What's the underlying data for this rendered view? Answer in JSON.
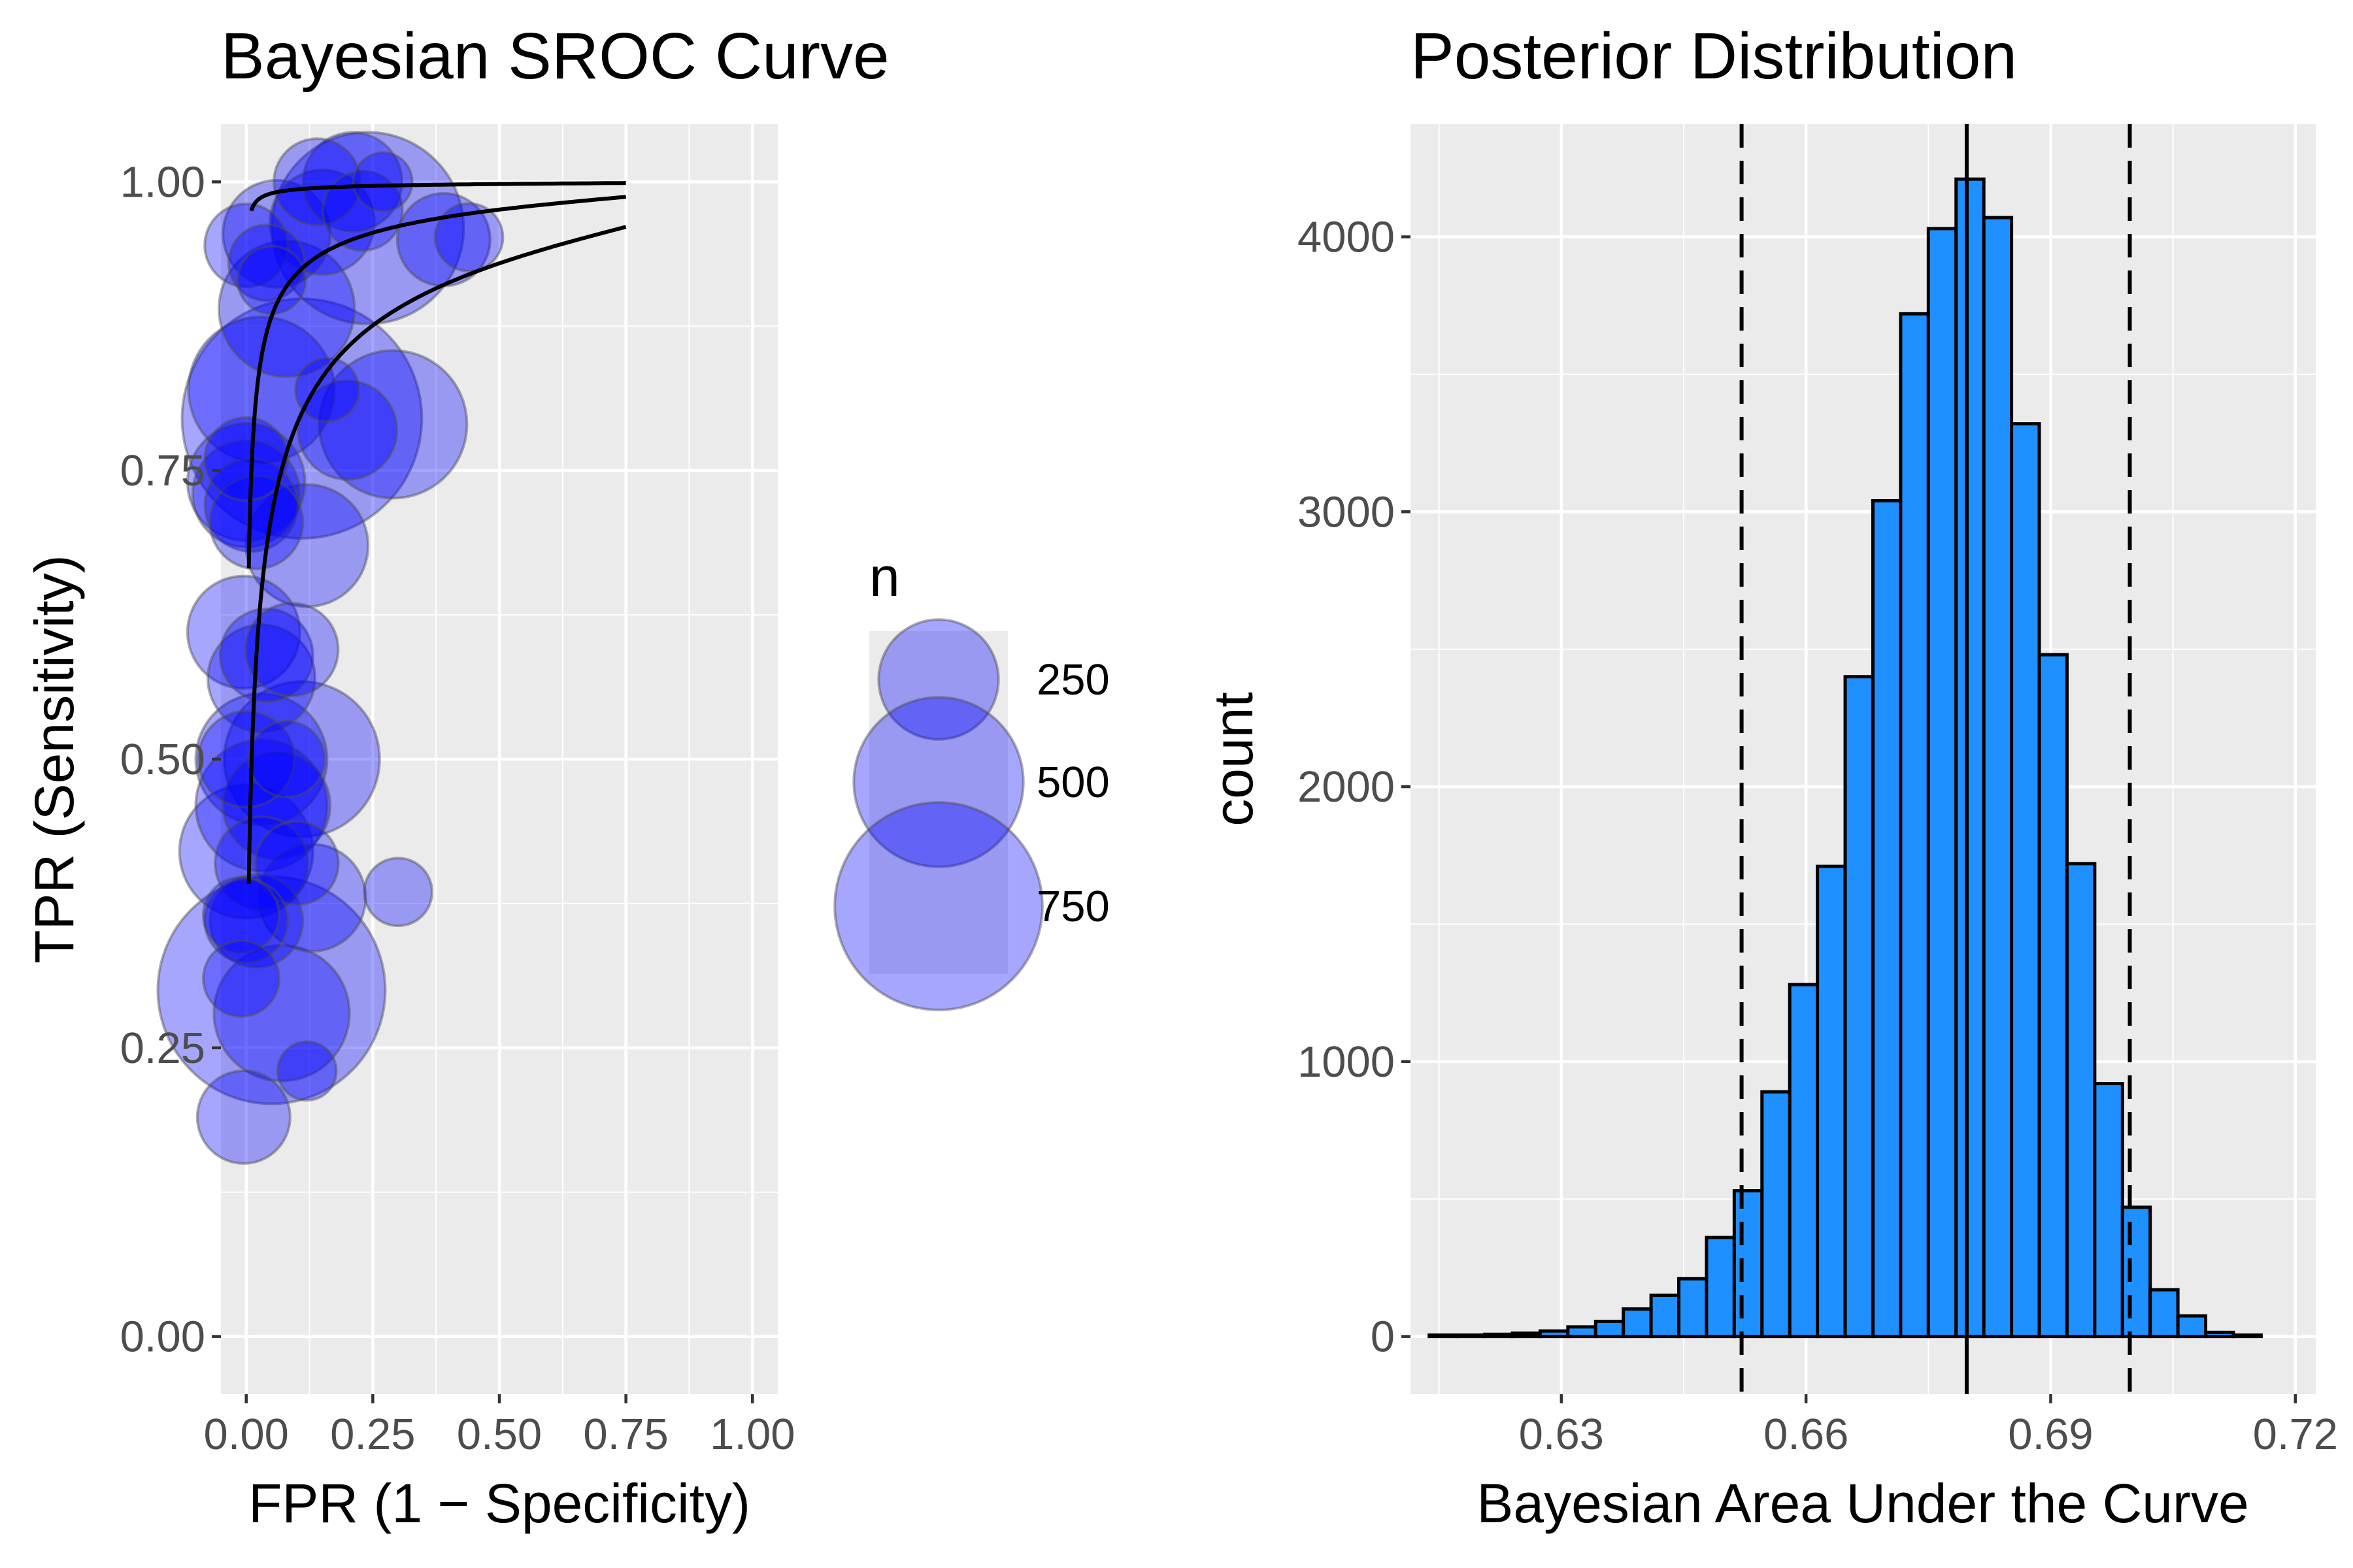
{
  "chart_data": [
    {
      "type": "scatter",
      "title": "Bayesian SROC Curve",
      "xlabel": "FPR (1 − Specificity)",
      "ylabel": "TPR (Sensitivity)",
      "xlim": [
        -0.05,
        1.05
      ],
      "ylim": [
        -0.05,
        1.05
      ],
      "x_ticks": [
        0,
        0.25,
        0.5,
        0.75,
        1
      ],
      "x_tick_labels": [
        "0.00",
        "0.25",
        "0.50",
        "0.75",
        "1.00"
      ],
      "y_ticks": [
        0,
        0.25,
        0.5,
        0.75,
        1
      ],
      "y_tick_labels": [
        "0.00",
        "0.25",
        "0.50",
        "0.75",
        "1.00"
      ],
      "grid": true,
      "point_color": "#0000ff",
      "point_opacity": 0.35,
      "points": [
        {
          "fpr": 0.14,
          "tpr": 1.0,
          "n": 130
        },
        {
          "fpr": 0.21,
          "tpr": 1.0,
          "n": 170
        },
        {
          "fpr": 0.27,
          "tpr": 1.0,
          "n": 60
        },
        {
          "fpr": 0.23,
          "tpr": 0.975,
          "n": 110
        },
        {
          "fpr": 0.15,
          "tpr": 0.965,
          "n": 190
        },
        {
          "fpr": 0.24,
          "tpr": 0.96,
          "n": 640
        },
        {
          "fpr": 0.39,
          "tpr": 0.95,
          "n": 150
        },
        {
          "fpr": 0.44,
          "tpr": 0.952,
          "n": 80
        },
        {
          "fpr": 0.06,
          "tpr": 0.955,
          "n": 200
        },
        {
          "fpr": 0.0,
          "tpr": 0.945,
          "n": 120
        },
        {
          "fpr": 0.04,
          "tpr": 0.93,
          "n": 100
        },
        {
          "fpr": 0.05,
          "tpr": 0.915,
          "n": 80
        },
        {
          "fpr": 0.08,
          "tpr": 0.89,
          "n": 320
        },
        {
          "fpr": 0.03,
          "tpr": 0.82,
          "n": 370
        },
        {
          "fpr": 0.11,
          "tpr": 0.795,
          "n": 1000
        },
        {
          "fpr": 0.16,
          "tpr": 0.82,
          "n": 70
        },
        {
          "fpr": 0.2,
          "tpr": 0.785,
          "n": 170
        },
        {
          "fpr": 0.29,
          "tpr": 0.79,
          "n": 380
        },
        {
          "fpr": 0.0,
          "tpr": 0.76,
          "n": 120
        },
        {
          "fpr": 0.0,
          "tpr": 0.74,
          "n": 240
        },
        {
          "fpr": 0.0,
          "tpr": 0.73,
          "n": 200
        },
        {
          "fpr": 0.01,
          "tpr": 0.72,
          "n": 150
        },
        {
          "fpr": 0.02,
          "tpr": 0.705,
          "n": 150
        },
        {
          "fpr": 0.12,
          "tpr": 0.685,
          "n": 260
        },
        {
          "fpr": -0.005,
          "tpr": 0.61,
          "n": 220
        },
        {
          "fpr": 0.04,
          "tpr": 0.59,
          "n": 150
        },
        {
          "fpr": 0.09,
          "tpr": 0.595,
          "n": 150
        },
        {
          "fpr": 0.03,
          "tpr": 0.57,
          "n": 200
        },
        {
          "fpr": 0.0,
          "tpr": 0.5,
          "n": 160
        },
        {
          "fpr": 0.03,
          "tpr": 0.5,
          "n": 300
        },
        {
          "fpr": 0.11,
          "tpr": 0.5,
          "n": 420
        },
        {
          "fpr": 0.08,
          "tpr": 0.5,
          "n": 100
        },
        {
          "fpr": 0.03,
          "tpr": 0.46,
          "n": 300
        },
        {
          "fpr": 0.06,
          "tpr": 0.46,
          "n": 200
        },
        {
          "fpr": 0.0,
          "tpr": 0.42,
          "n": 310
        },
        {
          "fpr": 0.03,
          "tpr": 0.41,
          "n": 150
        },
        {
          "fpr": 0.1,
          "tpr": 0.41,
          "n": 120
        },
        {
          "fpr": 0.13,
          "tpr": 0.38,
          "n": 200
        },
        {
          "fpr": -0.01,
          "tpr": 0.365,
          "n": 100
        },
        {
          "fpr": 0.0,
          "tpr": 0.36,
          "n": 120
        },
        {
          "fpr": 0.02,
          "tpr": 0.36,
          "n": 150
        },
        {
          "fpr": 0.3,
          "tpr": 0.385,
          "n": 80
        },
        {
          "fpr": -0.01,
          "tpr": 0.31,
          "n": 100
        },
        {
          "fpr": 0.05,
          "tpr": 0.3,
          "n": 900
        },
        {
          "fpr": 0.07,
          "tpr": 0.28,
          "n": 320
        },
        {
          "fpr": 0.12,
          "tpr": 0.23,
          "n": 60
        },
        {
          "fpr": -0.005,
          "tpr": 0.19,
          "n": 150
        }
      ],
      "curves": [
        {
          "x_start": 0.01,
          "x_end": 0.75,
          "y_end": 0.999
        },
        {
          "x_start": 0.005,
          "x_end": 0.75,
          "y_end": 0.987
        },
        {
          "x_start": 0.005,
          "x_end": 0.75,
          "y_end": 0.961
        }
      ],
      "legend": {
        "title": "n",
        "position": "right",
        "entries": [
          {
            "label": "250",
            "n": 250
          },
          {
            "label": "500",
            "n": 500
          },
          {
            "label": "750",
            "n": 750
          }
        ]
      }
    },
    {
      "type": "bar",
      "title": "Posterior Distribution",
      "xlabel": "Bayesian Area Under the Curve",
      "ylabel": "count",
      "xlim": [
        0.6115,
        0.7225
      ],
      "ylim": [
        -210,
        4410
      ],
      "x_ticks": [
        0.63,
        0.66,
        0.69,
        0.72
      ],
      "x_tick_labels": [
        "0.63",
        "0.66",
        "0.69",
        "0.72"
      ],
      "y_ticks": [
        0,
        1000,
        2000,
        3000,
        4000
      ],
      "y_tick_labels": [
        "0",
        "1000",
        "2000",
        "3000",
        "4000"
      ],
      "grid": true,
      "bar_color": "#1e90ff",
      "bar_outline": "#000000",
      "bin_start": 0.6138,
      "bin_width": 0.0034,
      "counts": [
        5,
        5,
        8,
        12,
        20,
        35,
        55,
        100,
        150,
        210,
        360,
        530,
        890,
        1280,
        1710,
        2400,
        3040,
        3720,
        4030,
        4210,
        4070,
        3320,
        2480,
        1720,
        920,
        470,
        170,
        75,
        15,
        5
      ],
      "reference_lines": [
        {
          "x": 0.6521,
          "style": "dashed"
        },
        {
          "x": 0.6797,
          "style": "solid"
        },
        {
          "x": 0.6997,
          "style": "dashed"
        }
      ]
    }
  ]
}
